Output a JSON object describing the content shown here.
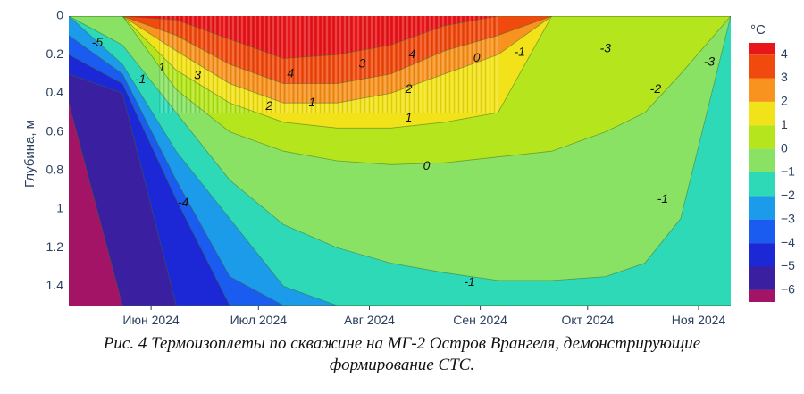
{
  "chart_data": {
    "type": "heatmap",
    "title": "",
    "ylabel": "Глубина, м",
    "xlabel": "",
    "y_ticks": [
      "0",
      "0.2",
      "0.4",
      "0.6",
      "0.8",
      "1",
      "1.2",
      "1.4"
    ],
    "y_tick_values": [
      0,
      0.2,
      0.4,
      0.6,
      0.8,
      1.0,
      1.2,
      1.4
    ],
    "ylim": [
      0,
      1.5
    ],
    "y_reversed": true,
    "x_ticks": [
      "Июн 2024",
      "Июл 2024",
      "Авг 2024",
      "Сен 2024",
      "Окт 2024",
      "Ноя 2024"
    ],
    "x_tick_dates": [
      "2024-06-01",
      "2024-07-01",
      "2024-08-01",
      "2024-09-01",
      "2024-10-01",
      "2024-11-01"
    ],
    "xlim": [
      "2024-05-09",
      "2024-11-10"
    ],
    "colorbar": {
      "title": "°C",
      "ticks": [
        "4",
        "3",
        "2",
        "1",
        "0",
        "−1",
        "−2",
        "−3",
        "−4",
        "−5",
        "−6"
      ],
      "tick_values": [
        4,
        3,
        2,
        1,
        0,
        -1,
        -2,
        -3,
        -4,
        -5,
        -6
      ],
      "range": [
        -6.5,
        4.5
      ],
      "bands": [
        {
          "from": 4,
          "to": 4.5,
          "color": "#e8161a"
        },
        {
          "from": 3,
          "to": 4,
          "color": "#f04a0f"
        },
        {
          "from": 2,
          "to": 3,
          "color": "#f7931e"
        },
        {
          "from": 1,
          "to": 2,
          "color": "#f2e219"
        },
        {
          "from": 0,
          "to": 1,
          "color": "#b5e61d"
        },
        {
          "from": -1,
          "to": 0,
          "color": "#8ae264"
        },
        {
          "from": -2,
          "to": -1,
          "color": "#2ed9b8"
        },
        {
          "from": -3,
          "to": -2,
          "color": "#1c9bea"
        },
        {
          "from": -4,
          "to": -3,
          "color": "#1a5bf0"
        },
        {
          "from": -5,
          "to": -4,
          "color": "#1c28d6"
        },
        {
          "from": -6,
          "to": -5,
          "color": "#3a1fa0"
        },
        {
          "from": -6.5,
          "to": -6,
          "color": "#a41466"
        }
      ]
    },
    "contour_labels": [
      {
        "text": "-5",
        "date": "2024-05-17",
        "depth": 0.14
      },
      {
        "text": "-1",
        "date": "2024-05-29",
        "depth": 0.33
      },
      {
        "text": "1",
        "date": "2024-06-04",
        "depth": 0.27
      },
      {
        "text": "3",
        "date": "2024-06-14",
        "depth": 0.31
      },
      {
        "text": "2",
        "date": "2024-07-04",
        "depth": 0.47
      },
      {
        "text": "4",
        "date": "2024-07-10",
        "depth": 0.3
      },
      {
        "text": "1",
        "date": "2024-07-16",
        "depth": 0.45
      },
      {
        "text": "3",
        "date": "2024-07-30",
        "depth": 0.25
      },
      {
        "text": "2",
        "date": "2024-08-12",
        "depth": 0.38
      },
      {
        "text": "4",
        "date": "2024-08-13",
        "depth": 0.2
      },
      {
        "text": "1",
        "date": "2024-08-12",
        "depth": 0.53
      },
      {
        "text": "0",
        "date": "2024-08-17",
        "depth": 0.78
      },
      {
        "text": "0",
        "date": "2024-08-31",
        "depth": 0.22
      },
      {
        "text": "-1",
        "date": "2024-09-12",
        "depth": 0.19
      },
      {
        "text": "-3",
        "date": "2024-10-06",
        "depth": 0.17
      },
      {
        "text": "-2",
        "date": "2024-10-20",
        "depth": 0.38
      },
      {
        "text": "-3",
        "date": "2024-11-04",
        "depth": 0.24
      },
      {
        "text": "-1",
        "date": "2024-10-22",
        "depth": 0.95
      },
      {
        "text": "-4",
        "date": "2024-06-10",
        "depth": 0.97
      },
      {
        "text": "-1",
        "date": "2024-08-29",
        "depth": 1.38
      }
    ],
    "isotherm_depths": {
      "dates": [
        "2024-05-09",
        "2024-05-24",
        "2024-06-08",
        "2024-06-23",
        "2024-07-08",
        "2024-07-23",
        "2024-08-07",
        "2024-08-22",
        "2024-09-06",
        "2024-09-21",
        "2024-10-06",
        "2024-10-17",
        "2024-10-27",
        "2024-11-10"
      ],
      "minus6": [
        0.45,
        1.5,
        1.5,
        1.5,
        1.5,
        1.5,
        1.5,
        1.5,
        1.5,
        1.5,
        1.5,
        1.5,
        1.5,
        1.5
      ],
      "minus5": [
        0.3,
        0.4,
        1.5,
        1.5,
        1.5,
        1.5,
        1.5,
        1.5,
        1.5,
        1.5,
        1.5,
        1.5,
        1.5,
        1.5
      ],
      "minus4": [
        0.2,
        0.35,
        0.95,
        1.5,
        1.5,
        1.5,
        1.5,
        1.5,
        1.5,
        1.5,
        1.5,
        1.5,
        1.5,
        1.5
      ],
      "minus3": [
        0.1,
        0.3,
        0.85,
        1.35,
        1.5,
        1.5,
        1.5,
        1.5,
        1.5,
        1.5,
        1.5,
        1.5,
        1.5,
        1.5
      ],
      "minus2": [
        0.0,
        0.25,
        0.7,
        1.05,
        1.4,
        1.5,
        1.5,
        1.5,
        1.5,
        1.5,
        1.5,
        1.5,
        1.5,
        1.5
      ],
      "minus1": [
        0.0,
        0.15,
        0.5,
        0.85,
        1.08,
        1.2,
        1.28,
        1.33,
        1.37,
        1.37,
        1.35,
        1.28,
        1.05,
        0.0
      ],
      "zero": [
        0.0,
        0.0,
        0.38,
        0.6,
        0.7,
        0.75,
        0.77,
        0.76,
        0.73,
        0.7,
        0.6,
        0.5,
        0.3,
        0.0
      ],
      "plus1": [
        0.0,
        0.0,
        0.28,
        0.45,
        0.55,
        0.58,
        0.58,
        0.55,
        0.5,
        0.0,
        0.0,
        0.0,
        0.0,
        0.0
      ],
      "plus2": [
        0.0,
        0.0,
        0.18,
        0.35,
        0.45,
        0.45,
        0.4,
        0.3,
        0.2,
        0.0,
        0.0,
        0.0,
        0.0,
        0.0
      ],
      "plus3": [
        0.0,
        0.0,
        0.1,
        0.25,
        0.35,
        0.35,
        0.3,
        0.18,
        0.1,
        0.0,
        0.0,
        0.0,
        0.0,
        0.0
      ],
      "plus4": [
        0.0,
        0.0,
        0.02,
        0.12,
        0.22,
        0.2,
        0.15,
        0.05,
        0.0,
        0.0,
        0.0,
        0.0,
        0.0,
        0.0
      ]
    }
  },
  "caption": {
    "line1": "Рис. 4 Термоизоплеты по скважине на МГ-2 Остров Врангеля, демонстрирующие",
    "line2": "формирование СТС."
  }
}
